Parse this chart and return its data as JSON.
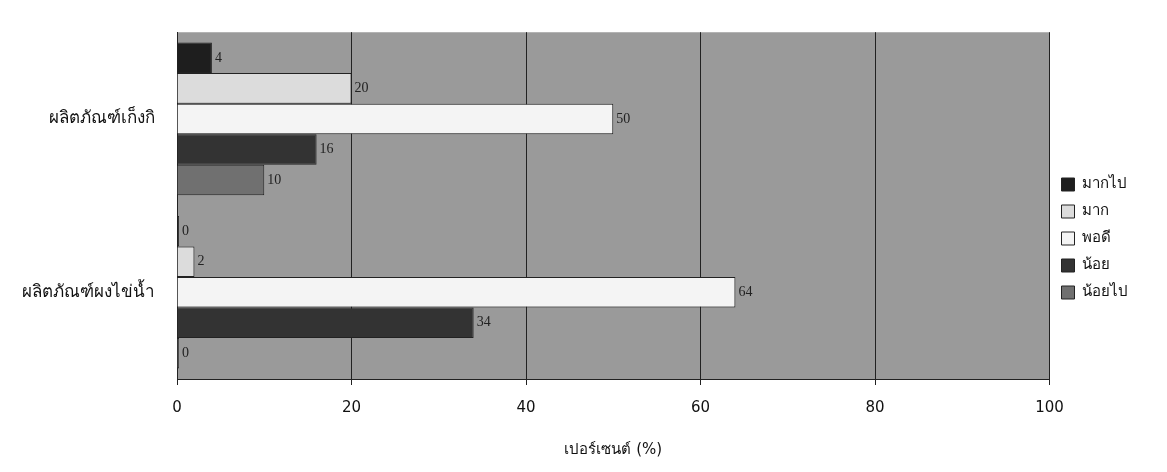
{
  "chart_data": {
    "type": "bar",
    "orientation": "horizontal",
    "xlabel": "เปอร์เซนต์ (%)",
    "categories": [
      "ผลิตภัณฑ์เก็งกิ",
      "ผลิตภัณฑ์ผงไข่น้ำ"
    ],
    "series": [
      {
        "name": "มากไป",
        "color": "#1e1e1e",
        "values": [
          4,
          0
        ]
      },
      {
        "name": "มาก",
        "color": "#dcdcdc",
        "values": [
          20,
          2
        ]
      },
      {
        "name": "พอดี",
        "color": "#f4f4f4",
        "values": [
          50,
          64
        ]
      },
      {
        "name": "น้อย",
        "color": "#333333",
        "values": [
          16,
          34
        ]
      },
      {
        "name": "น้อยไป",
        "color": "#707070",
        "values": [
          10,
          0
        ]
      }
    ],
    "xlim": [
      0,
      100
    ],
    "xticks": [
      0,
      20,
      40,
      60,
      80,
      100
    ],
    "grid": "x",
    "legend": "right",
    "data_labels": true
  }
}
